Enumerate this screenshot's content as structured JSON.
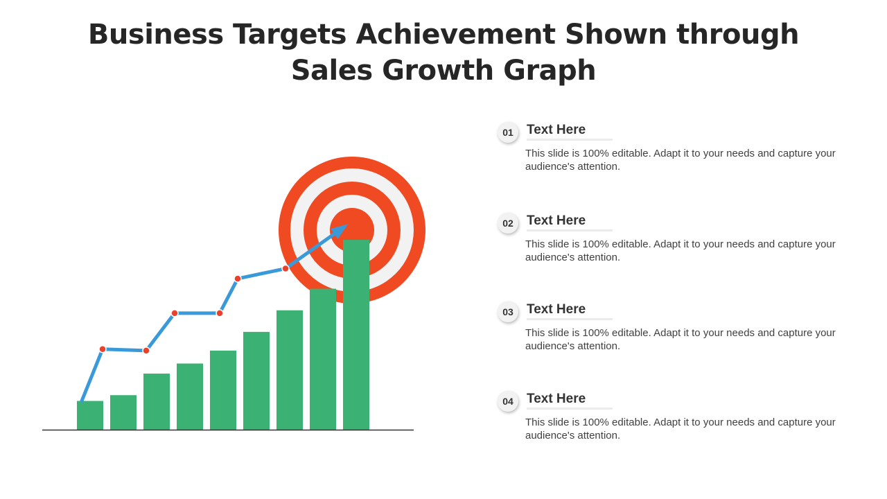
{
  "title": {
    "line1": "Business Targets Achievement Shown through",
    "line2": "Sales Growth Graph"
  },
  "colors": {
    "bar": "#3bb273",
    "arrow": "#3a9ad9",
    "marker": "#e8412c",
    "target_red": "#f04a23",
    "target_white": "#f2f2f2",
    "axis": "#333333"
  },
  "chart_data": {
    "type": "bar",
    "bar_values": [
      2.0,
      2.4,
      3.9,
      4.6,
      5.5,
      6.8,
      8.3,
      9.8,
      13.2
    ],
    "trend_values": [
      2.0,
      5.6,
      5.5,
      8.1,
      8.1,
      10.5,
      11.2
    ],
    "ylim": [
      0,
      14
    ],
    "title": "",
    "xlabel": "",
    "ylabel": ""
  },
  "items": [
    {
      "num": "01",
      "title": "Text Here",
      "text": "This slide is 100% editable. Adapt it to your needs and capture your audience's attention."
    },
    {
      "num": "02",
      "title": "Text Here",
      "text": "This slide is 100% editable. Adapt it to your needs and capture your audience's attention."
    },
    {
      "num": "03",
      "title": "Text Here",
      "text": "This slide is 100% editable. Adapt it to your needs and capture your audience's attention."
    },
    {
      "num": "04",
      "title": "Text Here",
      "text": "This slide is 100% editable. Adapt it to your needs and capture your audience's attention."
    }
  ]
}
